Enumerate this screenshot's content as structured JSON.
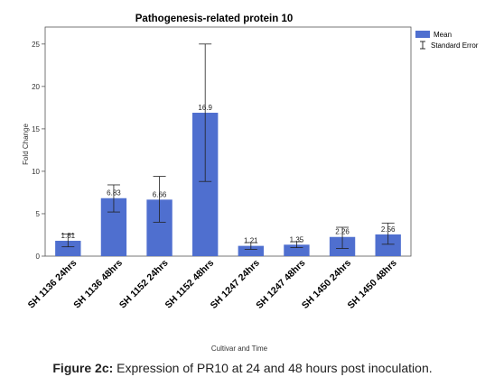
{
  "chart_data": {
    "type": "bar",
    "title": "Pathogenesis-related protein 10",
    "xlabel": "Cultivar and Time",
    "ylabel": "Fold Change",
    "ylim": [
      0,
      27
    ],
    "yticks": [
      0,
      5,
      10,
      15,
      20,
      25
    ],
    "grid": false,
    "legend_position": "top-right",
    "legend": {
      "mean_label": "Mean",
      "se_label": "Standard Error"
    },
    "bar_color": "#4f6fcf",
    "categories": [
      "SH 1136  24hrs",
      "SH 1136  48hrs",
      "SH 1152 24hrs",
      "SH 1152 48hrs",
      "SH 1247 24hrs",
      "SH 1247 48hrs",
      "SH 1450 24hrs",
      "SH 1450 48hrs"
    ],
    "values": [
      1.81,
      6.83,
      6.66,
      16.9,
      1.21,
      1.35,
      2.26,
      2.56
    ],
    "value_labels": [
      "1.81",
      "6.83",
      "6.66",
      "16.9",
      "1.21",
      "1.35",
      "2.26",
      "2.56"
    ],
    "error_low": [
      1.1,
      5.2,
      4.0,
      8.8,
      0.8,
      1.0,
      0.9,
      1.4
    ],
    "error_high": [
      2.6,
      8.4,
      9.4,
      25.0,
      1.6,
      1.7,
      3.4,
      3.9
    ]
  },
  "caption": {
    "label": "Figure 2c:",
    "text": " Expression of PR10 at 24 and 48 hours post inoculation."
  }
}
